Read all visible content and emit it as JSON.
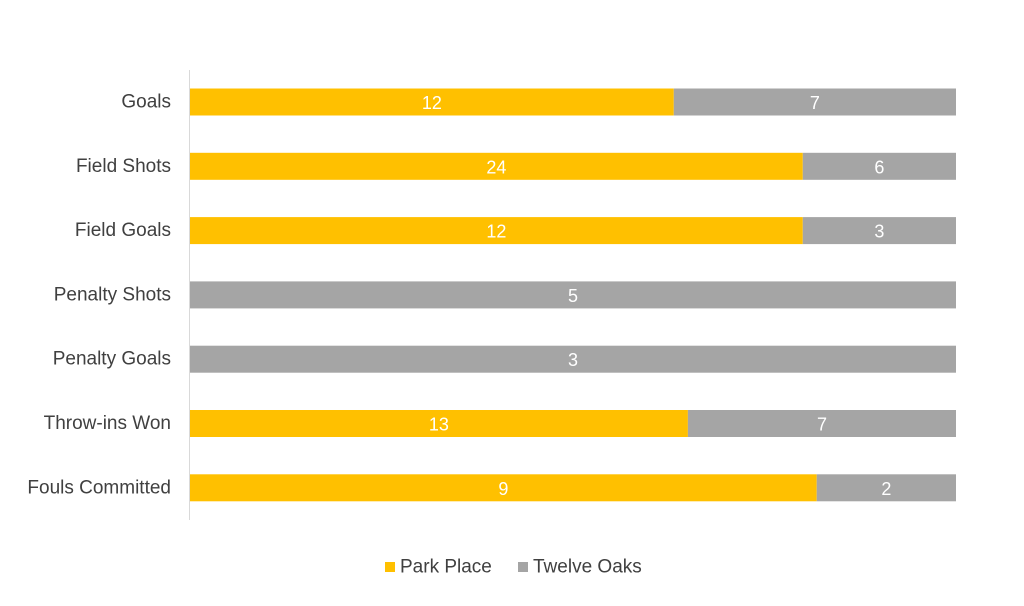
{
  "chart_data": {
    "type": "bar",
    "orientation": "horizontal",
    "stacking": "percent",
    "title": "",
    "xlabel": "",
    "ylabel": "",
    "categories": [
      "Goals",
      "Field Shots",
      "Field Goals",
      "Penalty Shots",
      "Penalty Goals",
      "Throw-ins Won",
      "Fouls Committed"
    ],
    "series": [
      {
        "name": "Park Place",
        "color": "#FFC000",
        "values": [
          12,
          24,
          12,
          0,
          0,
          13,
          9
        ]
      },
      {
        "name": "Twelve Oaks",
        "color": "#A5A5A5",
        "values": [
          7,
          6,
          3,
          5,
          3,
          7,
          2
        ]
      }
    ],
    "xlim": [
      0,
      100
    ],
    "grid": false,
    "legend_position": "bottom"
  }
}
